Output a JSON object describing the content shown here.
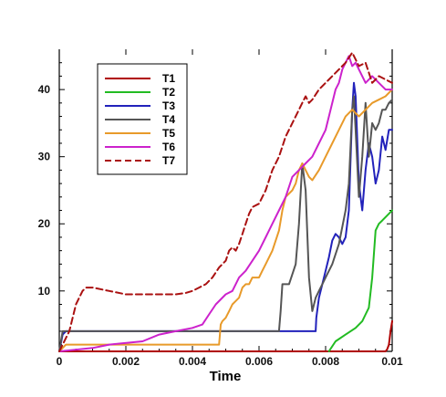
{
  "chart_data": {
    "type": "line",
    "title": "",
    "xlabel": "Time",
    "ylabel": "",
    "xlim": [
      0,
      0.01
    ],
    "ylim": [
      1,
      46
    ],
    "x_ticks": [
      0,
      0.002,
      0.004,
      0.006,
      0.008,
      0.01
    ],
    "x_tick_labels": [
      "0",
      "0.002",
      "0.004",
      "0.006",
      "0.008",
      "0.01"
    ],
    "y_ticks": [
      10,
      20,
      30,
      40
    ],
    "y_tick_labels": [
      "10",
      "20",
      "30",
      "40"
    ],
    "grid": false,
    "legend_position": "top-left",
    "series": [
      {
        "name": "T1",
        "color": "#b00000",
        "dash": "solid",
        "x": [
          0,
          0.0098,
          0.00985,
          0.0099,
          0.00995,
          0.01
        ],
        "y": [
          1,
          1,
          1.3,
          2,
          4,
          5.5
        ]
      },
      {
        "name": "T2",
        "color": "#22bb22",
        "dash": "solid",
        "x": [
          0.0081,
          0.0083,
          0.0086,
          0.0089,
          0.0091,
          0.0092,
          0.0093,
          0.0094,
          0.0095,
          0.0096,
          0.0097,
          0.0098,
          0.0099,
          0.01
        ],
        "y": [
          1,
          2.5,
          3.5,
          4.5,
          5.5,
          6.5,
          7.5,
          12,
          19,
          20,
          20.5,
          21,
          21.5,
          22
        ]
      },
      {
        "name": "T3",
        "color": "#2222bb",
        "dash": "solid",
        "x": [
          0,
          0.0001,
          0.0002,
          0.0003,
          0.0004,
          0.0077,
          0.00772,
          0.0078,
          0.0079,
          0.008,
          0.0081,
          0.0082,
          0.0083,
          0.0084,
          0.0085,
          0.0086,
          0.0087,
          0.0088,
          0.00885,
          0.0089,
          0.009,
          0.0091,
          0.0092,
          0.0093,
          0.0094,
          0.0095,
          0.0096,
          0.0097,
          0.0098,
          0.0099,
          0.01
        ],
        "y": [
          1,
          3.5,
          4,
          4,
          4,
          4,
          6,
          9,
          11,
          13,
          15,
          17.5,
          18.5,
          18,
          17,
          18,
          22,
          37,
          41,
          39,
          26,
          22,
          28,
          32,
          30,
          26,
          28,
          33,
          31,
          34,
          34
        ]
      },
      {
        "name": "T4",
        "color": "#555555",
        "dash": "solid",
        "x": [
          0,
          0.0001,
          0.0003,
          0.0066,
          0.00665,
          0.0067,
          0.0069,
          0.0071,
          0.0072,
          0.0073,
          0.0074,
          0.0075,
          0.0076,
          0.0077,
          0.0078,
          0.0079,
          0.008,
          0.0082,
          0.0084,
          0.0086,
          0.0087,
          0.0088,
          0.00885,
          0.0089,
          0.009,
          0.0091,
          0.0092,
          0.0093,
          0.0094,
          0.0095,
          0.0096,
          0.0097,
          0.0098,
          0.0099,
          0.01
        ],
        "y": [
          1,
          4,
          4,
          4,
          7,
          11,
          11,
          14,
          20,
          29,
          25,
          12,
          7,
          9,
          10,
          11,
          12,
          14,
          17,
          22,
          26,
          37,
          39,
          34,
          24,
          30,
          38,
          30,
          35,
          34,
          35,
          37,
          37,
          38,
          38.5
        ]
      },
      {
        "name": "T5",
        "color": "#e89a2a",
        "dash": "solid",
        "x": [
          0,
          0.0002,
          0.0003,
          0.0048,
          0.00485,
          0.0049,
          0.005,
          0.0051,
          0.0052,
          0.0053,
          0.0054,
          0.0055,
          0.0056,
          0.0057,
          0.0058,
          0.006,
          0.0061,
          0.0062,
          0.0064,
          0.0066,
          0.0067,
          0.0068,
          0.007,
          0.0071,
          0.0072,
          0.0073,
          0.0074,
          0.0075,
          0.0076,
          0.0078,
          0.008,
          0.0082,
          0.0084,
          0.0086,
          0.0088,
          0.009,
          0.0092,
          0.0094,
          0.0096,
          0.0098,
          0.01
        ],
        "y": [
          1,
          2,
          2,
          2,
          5,
          5.5,
          6,
          7,
          8,
          8.5,
          9,
          10.5,
          11,
          11,
          12,
          12,
          13,
          14,
          16,
          19,
          22,
          24,
          25,
          26,
          28,
          29,
          28,
          27,
          26.5,
          28,
          30,
          32,
          34,
          36,
          37,
          36,
          37,
          38,
          38.5,
          39,
          40
        ]
      },
      {
        "name": "T6",
        "color": "#cc22cc",
        "dash": "solid",
        "x": [
          0,
          0.001,
          0.0015,
          0.0025,
          0.003,
          0.0035,
          0.004,
          0.0043,
          0.0045,
          0.0047,
          0.005,
          0.0052,
          0.0054,
          0.0056,
          0.0058,
          0.006,
          0.0062,
          0.0064,
          0.0066,
          0.0068,
          0.007,
          0.0072,
          0.0074,
          0.0076,
          0.0078,
          0.008,
          0.0082,
          0.0083,
          0.0084,
          0.0085,
          0.0086,
          0.0087,
          0.0088,
          0.0089,
          0.009,
          0.0092,
          0.0094,
          0.0096,
          0.0098,
          0.01
        ],
        "y": [
          1,
          1.5,
          2,
          2.5,
          3.5,
          4,
          4.5,
          5,
          6.5,
          8,
          9.5,
          10,
          12,
          13,
          14.5,
          16,
          18,
          20,
          22,
          24,
          27,
          28,
          29,
          30,
          32,
          34,
          38,
          40,
          41,
          43,
          44,
          45,
          43.5,
          44,
          43,
          41,
          42,
          41,
          40,
          40
        ]
      },
      {
        "name": "T7",
        "color": "#aa1111",
        "dash": "dashed",
        "x": [
          0,
          0.0001,
          0.0002,
          0.0003,
          0.0005,
          0.0007,
          0.0008,
          0.001,
          0.0015,
          0.002,
          0.0025,
          0.003,
          0.0035,
          0.0038,
          0.004,
          0.0042,
          0.0044,
          0.0046,
          0.0048,
          0.005,
          0.0051,
          0.0052,
          0.0053,
          0.0054,
          0.0055,
          0.0056,
          0.0057,
          0.0058,
          0.006,
          0.0062,
          0.0064,
          0.0066,
          0.0068,
          0.007,
          0.0072,
          0.0073,
          0.0074,
          0.0075,
          0.0076,
          0.0078,
          0.008,
          0.0082,
          0.0084,
          0.0086,
          0.0088,
          0.009,
          0.0092,
          0.0094,
          0.0096,
          0.0098,
          0.01
        ],
        "y": [
          1,
          2,
          3,
          4,
          8,
          10,
          10.5,
          10.5,
          10,
          9.5,
          9.5,
          9.5,
          9.5,
          9.7,
          10,
          10.5,
          11,
          12,
          13.5,
          14.5,
          16,
          16.5,
          16,
          17,
          18.5,
          20,
          21.5,
          22.5,
          23,
          25,
          28,
          30,
          33,
          35,
          37,
          38,
          39,
          38,
          38.5,
          40,
          41,
          42,
          43,
          44,
          45.5,
          43.5,
          44,
          41,
          42,
          41.5,
          41
        ]
      }
    ]
  }
}
